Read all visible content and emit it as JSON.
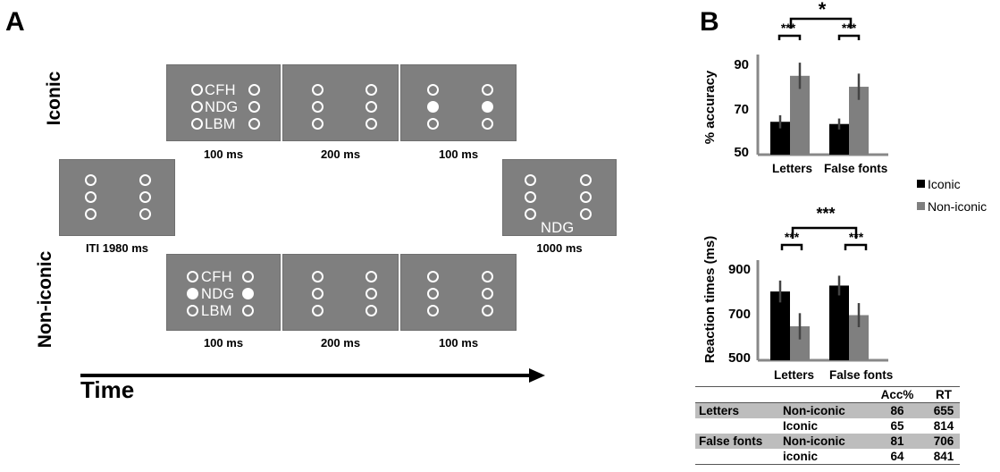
{
  "panel_a": {
    "label": "A",
    "row_labels": {
      "iconic": "Iconic",
      "noniconic": "Non-iconic"
    },
    "letters": [
      "CFH",
      "NDG",
      "LBM"
    ],
    "probe_text": "NDG",
    "durations": {
      "iti": "ITI 1980 ms",
      "t100a": "100 ms",
      "t200a": "200 ms",
      "t100b": "100 ms",
      "t100c": "100 ms",
      "t200b": "200 ms",
      "t100d": "100 ms",
      "probe": "1000 ms"
    },
    "time_label": "Time"
  },
  "panel_b": {
    "label": "B",
    "legend": {
      "iconic": "Iconic",
      "noniconic": "Non-iconic",
      "iconic_color": "#000000",
      "noniconic_color": "#7f7f7f"
    },
    "sig": {
      "main_acc": "*",
      "within_acc": "***",
      "main_rt": "***",
      "within_rt": "***"
    }
  },
  "chart_data": [
    {
      "type": "bar",
      "categories": [
        "Letters",
        "False fonts"
      ],
      "series": [
        {
          "name": "Iconic",
          "values": [
            65,
            64
          ],
          "error": [
            3,
            2.5
          ]
        },
        {
          "name": "Non-iconic",
          "values": [
            86,
            81
          ],
          "error": [
            6,
            6
          ]
        }
      ],
      "ylabel": "% accuracy",
      "ylim": [
        50,
        95
      ],
      "yticks": [
        50,
        70,
        90
      ]
    },
    {
      "type": "bar",
      "categories": [
        "Letters",
        "False fonts"
      ],
      "series": [
        {
          "name": "Iconic",
          "values": [
            814,
            841
          ],
          "error": [
            50,
            45
          ]
        },
        {
          "name": "Non-iconic",
          "values": [
            655,
            706
          ],
          "error": [
            60,
            55
          ]
        }
      ],
      "ylabel": "Reaction times (ms)",
      "ylim": [
        500,
        920
      ],
      "yticks": [
        500,
        700,
        900
      ]
    }
  ],
  "table": {
    "headers": [
      "",
      "",
      "Acc%",
      "RT"
    ],
    "rows": [
      [
        "Letters",
        "Non-iconic",
        "86",
        "655"
      ],
      [
        "",
        "Iconic",
        "65",
        "814"
      ],
      [
        "False fonts",
        "Non-iconic",
        "81",
        "706"
      ],
      [
        "",
        "iconic",
        "64",
        "841"
      ]
    ]
  }
}
